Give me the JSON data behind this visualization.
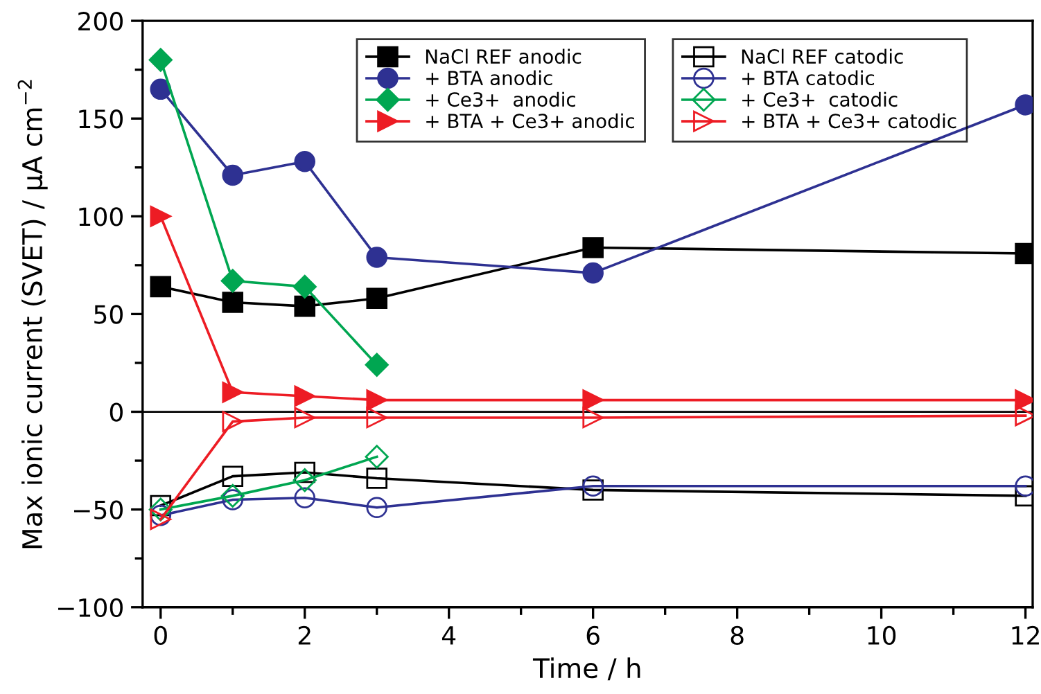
{
  "chart_data": {
    "type": "line",
    "xlabel": "Time / h",
    "ylabel": "Max ionic current (SVET) / µA cm$^{−2}$",
    "xlim": [
      -0.25,
      12.1
    ],
    "ylim": [
      -100,
      200
    ],
    "xticks": [
      0,
      2,
      4,
      6,
      8,
      10,
      12
    ],
    "yticks": [
      -100,
      -50,
      0,
      50,
      100,
      150,
      200
    ],
    "grid": false,
    "legend": "top",
    "ref_lines": [
      {
        "axis": "y",
        "value": 0,
        "color": "#000000"
      }
    ],
    "series": [
      {
        "name": "NaCl REF anodic",
        "color": "#000000",
        "marker": "square",
        "x": [
          0,
          1,
          2,
          3,
          6,
          12
        ],
        "values": [
          64,
          56,
          54,
          58,
          84,
          81
        ]
      },
      {
        "name": "+ BTA anodic",
        "color": "#2e3192",
        "marker": "circle",
        "x": [
          0,
          1,
          2,
          3,
          6,
          12
        ],
        "values": [
          165,
          121,
          128,
          79,
          71,
          157
        ]
      },
      {
        "name": "+ Ce3+  anodic",
        "color": "#00a651",
        "marker": "diamond",
        "x": [
          0,
          1,
          2,
          3
        ],
        "values": [
          180,
          67,
          64,
          24
        ]
      },
      {
        "name": "+ BTA + Ce3+ anodic",
        "color": "#ed1c24",
        "marker": "triangle",
        "x": [
          0,
          1,
          2,
          3,
          6,
          12
        ],
        "values": [
          100,
          10,
          8,
          6,
          6,
          6
        ]
      },
      {
        "name": "NaCl REF catodic",
        "color": "#000000",
        "marker": "square",
        "x": [
          0,
          1,
          2,
          3,
          6,
          12
        ],
        "values": [
          -48,
          -33,
          -31,
          -34,
          -40,
          -43
        ]
      },
      {
        "name": "+ BTA catodic",
        "color": "#2e3192",
        "marker": "circle",
        "x": [
          0,
          1,
          2,
          3,
          6,
          12
        ],
        "values": [
          -53,
          -45,
          -44,
          -49,
          -38,
          -38
        ]
      },
      {
        "name": "+ Ce3+  catodic",
        "color": "#00a651",
        "marker": "diamond",
        "x": [
          0,
          1,
          2,
          3
        ],
        "values": [
          -50,
          -43,
          -35,
          -23
        ]
      },
      {
        "name": "+ BTA + Ce3+ catodic",
        "color": "#ed1c24",
        "marker": "triangle",
        "x": [
          0,
          1,
          2,
          3,
          6,
          12
        ],
        "values": [
          -55,
          -5,
          -3,
          -3,
          -3,
          -2
        ]
      }
    ]
  }
}
